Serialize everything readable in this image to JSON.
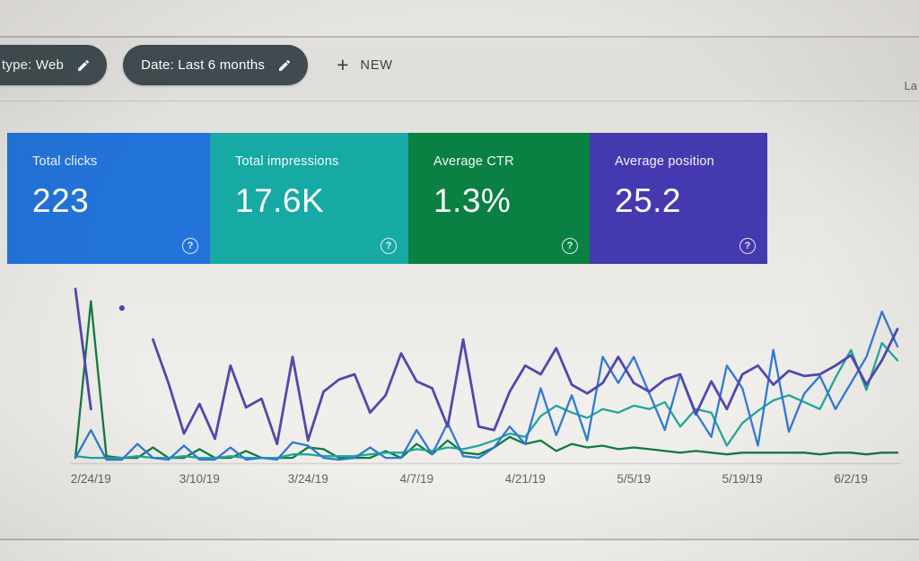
{
  "screen": {
    "top_right_partial_text": "La"
  },
  "toolbar": {
    "filter_chips": [
      {
        "label": "type: Web"
      },
      {
        "label": "Date: Last 6 months"
      }
    ],
    "new_button": {
      "plus": "+",
      "label": "NEW"
    }
  },
  "summary_cards": [
    {
      "label": "Total clicks",
      "value": "223",
      "color": "#2273da",
      "help_glyph": "?"
    },
    {
      "label": "Total impressions",
      "value": "17.6K",
      "color": "#17a9a4",
      "help_glyph": "?"
    },
    {
      "label": "Average CTR",
      "value": "1.3%",
      "color": "#0b8043",
      "help_glyph": "?"
    },
    {
      "label": "Average position",
      "value": "25.2",
      "color": "#4539b0",
      "help_glyph": "?"
    }
  ],
  "chart_data": {
    "type": "line",
    "title": "",
    "xlabel": "",
    "ylabel": "",
    "x_tick_labels": [
      "2/24/19",
      "3/10/19",
      "3/24/19",
      "4/7/19",
      "4/21/19",
      "5/5/19",
      "5/19/19",
      "6/2/19"
    ],
    "x_tick_indices": [
      1,
      8,
      15,
      22,
      29,
      36,
      43,
      50
    ],
    "n_points": 54,
    "ylim": [
      0,
      100
    ],
    "y_axis_visible": false,
    "grid": false,
    "legend_position": "none",
    "units": "values normalized 0-100 of plot height (each metric on its own scale)",
    "draw_order": [
      2,
      1,
      0,
      3
    ],
    "series": [
      {
        "name": "Total clicks",
        "color": "#2f79d3",
        "values": [
          2,
          18,
          1,
          1,
          10,
          2,
          1,
          9,
          1,
          1,
          8,
          1,
          2,
          1,
          11,
          9,
          2,
          1,
          2,
          8,
          2,
          2,
          18,
          4,
          22,
          3,
          2,
          8,
          20,
          10,
          42,
          15,
          38,
          12,
          60,
          45,
          60,
          39,
          18,
          50,
          28,
          14,
          55,
          42,
          9,
          64,
          17,
          39,
          49,
          30,
          45,
          60,
          86,
          66
        ]
      },
      {
        "name": "Total impressions",
        "color": "#21a79c",
        "values": [
          3,
          2,
          2,
          2,
          3,
          2,
          2,
          3,
          2,
          2,
          3,
          2,
          2,
          2,
          4,
          4,
          3,
          3,
          3,
          4,
          5,
          5,
          7,
          6,
          8,
          7,
          9,
          12,
          16,
          14,
          26,
          32,
          28,
          25,
          30,
          28,
          32,
          30,
          34,
          20,
          30,
          28,
          9,
          22,
          29,
          35,
          38,
          34,
          30,
          48,
          64,
          41,
          68,
          58
        ]
      },
      {
        "name": "Average CTR",
        "color": "#137a3f",
        "values": [
          2,
          92,
          3,
          2,
          2,
          8,
          2,
          2,
          7,
          2,
          2,
          6,
          2,
          2,
          2,
          8,
          7,
          2,
          2,
          2,
          6,
          2,
          10,
          4,
          12,
          5,
          4,
          8,
          14,
          10,
          12,
          6,
          10,
          8,
          9,
          7,
          8,
          7,
          6,
          5,
          6,
          5,
          4,
          5,
          5,
          5,
          5,
          5,
          4,
          5,
          5,
          4,
          5,
          5
        ]
      },
      {
        "name": "Average position",
        "color": "#5347ad",
        "values": [
          99,
          30,
          null,
          88,
          null,
          70,
          45,
          16,
          33,
          13,
          55,
          31,
          36,
          10,
          60,
          12,
          40,
          47,
          50,
          28,
          38,
          62,
          46,
          42,
          20,
          70,
          20,
          18,
          40,
          55,
          50,
          65,
          44,
          39,
          45,
          60,
          45,
          40,
          47,
          50,
          27,
          46,
          30,
          50,
          55,
          44,
          52,
          49,
          50,
          55,
          61,
          44,
          58,
          76
        ]
      }
    ]
  }
}
